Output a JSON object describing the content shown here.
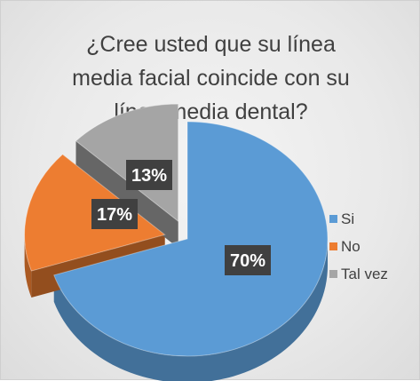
{
  "chart_data": {
    "type": "pie",
    "title": "¿Cree usted  que su línea\nmedia facial coincide con su\nlínea media dental?",
    "categories": [
      "Si",
      "No",
      "Tal vez"
    ],
    "values": [
      70,
      17,
      13
    ],
    "data_labels": [
      "70%",
      "17%",
      "13%"
    ],
    "colors": [
      "#5b9bd5",
      "#ed7d31",
      "#a5a5a5"
    ],
    "legend_position": "right",
    "style": "3d-exploded"
  }
}
